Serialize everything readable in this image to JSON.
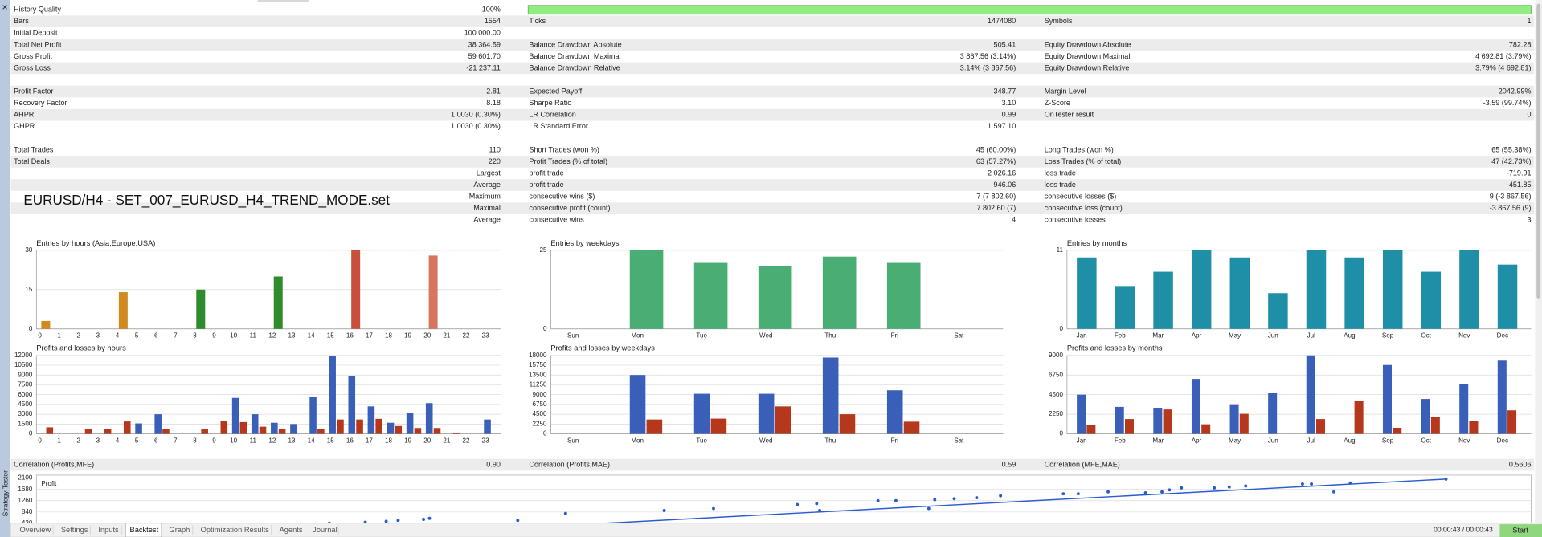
{
  "ui": {
    "close": "×",
    "side_label": "Strategy Tester"
  },
  "overlay_title": "EURUSD/H4 - SET_007_EURUSD_H4_TREND_MODE.set",
  "report": {
    "sections": [
      [
        {
          "left": {
            "label": "History Quality",
            "value": "100%"
          }
        },
        {
          "left": {
            "label": "Bars",
            "value": "1554"
          },
          "middle": {
            "label": "Ticks",
            "value": "1474080"
          },
          "right": {
            "label": "Symbols",
            "value": "1"
          }
        },
        {
          "left": {
            "label": "Initial Deposit",
            "value": "100 000.00"
          }
        },
        {
          "left": {
            "label": "Total Net Profit",
            "value": "38 364.59"
          },
          "middle": {
            "label": "Balance Drawdown Absolute",
            "value": "505.41"
          },
          "right": {
            "label": "Equity Drawdown Absolute",
            "value": "782.28"
          }
        },
        {
          "left": {
            "label": "Gross Profit",
            "value": "59 601.70"
          },
          "middle": {
            "label": "Balance Drawdown Maximal",
            "value": "3 867.56 (3.14%)"
          },
          "right": {
            "label": "Equity Drawdown Maximal",
            "value": "4 692.81 (3.79%)"
          }
        },
        {
          "left": {
            "label": "Gross Loss",
            "value": "-21 237.11"
          },
          "middle": {
            "label": "Balance Drawdown Relative",
            "value": "3.14% (3 867.56)"
          },
          "right": {
            "label": "Equity Drawdown Relative",
            "value": "3.79% (4 692.81)"
          }
        }
      ],
      [
        {
          "left": {
            "label": "Profit Factor",
            "value": "2.81"
          },
          "middle": {
            "label": "Expected Payoff",
            "value": "348.77"
          },
          "right": {
            "label": "Margin Level",
            "value": "2042.99%"
          }
        },
        {
          "left": {
            "label": "Recovery Factor",
            "value": "8.18"
          },
          "middle": {
            "label": "Sharpe Ratio",
            "value": "3.10"
          },
          "right": {
            "label": "Z-Score",
            "value": "-3.59 (99.74%)"
          }
        },
        {
          "left": {
            "label": "AHPR",
            "value": "1.0030 (0.30%)"
          },
          "middle": {
            "label": "LR Correlation",
            "value": "0.99"
          },
          "right": {
            "label": "OnTester result",
            "value": "0"
          }
        },
        {
          "left": {
            "label": "GHPR",
            "value": "1.0030 (0.30%)"
          },
          "middle": {
            "label": "LR Standard Error",
            "value": "1 597.10"
          }
        }
      ],
      [
        {
          "left": {
            "label": "Total Trades",
            "value": "110"
          },
          "middle": {
            "label": "Short Trades (won %)",
            "value": "45 (60.00%)"
          },
          "right": {
            "label": "Long Trades (won %)",
            "value": "65 (55.38%)"
          }
        },
        {
          "left": {
            "label": "Total Deals",
            "value": "220"
          },
          "middle": {
            "label": "Profit Trades (% of total)",
            "value": "63 (57.27%)"
          },
          "right": {
            "label": "Loss Trades (% of total)",
            "value": "47 (42.73%)"
          }
        },
        {
          "left": {
            "heading": "Largest"
          },
          "middle": {
            "label": "profit trade",
            "value": "2 026.16"
          },
          "right": {
            "label": "loss trade",
            "value": "-719.91"
          }
        },
        {
          "left": {
            "heading": "Average"
          },
          "middle": {
            "label": "profit trade",
            "value": "946.06"
          },
          "right": {
            "label": "loss trade",
            "value": "-451.85"
          }
        },
        {
          "left": {
            "heading": "Maximum"
          },
          "middle": {
            "label": "consecutive wins ($)",
            "value": "7 (7 802.60)"
          },
          "right": {
            "label": "consecutive losses ($)",
            "value": "9 (-3 867.56)"
          }
        },
        {
          "left": {
            "heading": "Maximal"
          },
          "middle": {
            "label": "consecutive profit (count)",
            "value": "7 802.60 (7)"
          },
          "right": {
            "label": "consecutive loss (count)",
            "value": "-3 867.56 (9)"
          }
        },
        {
          "left": {
            "heading": "Average"
          },
          "middle": {
            "label": "consecutive wins",
            "value": "4"
          },
          "right": {
            "label": "consecutive losses",
            "value": "3"
          }
        }
      ]
    ],
    "correlation": {
      "left": {
        "label": "Correlation (Profits,MFE)",
        "value": "0.90"
      },
      "middle": {
        "label": "Correlation (Profits,MAE)",
        "value": "0.59"
      },
      "right": {
        "label": "Correlation (MFE,MAE)",
        "value": "0.5606"
      }
    }
  },
  "chart_data": [
    {
      "type": "bar",
      "title": "Entries by hours (Asia,Europe,USA)",
      "categories": [
        "0",
        "1",
        "2",
        "3",
        "4",
        "5",
        "6",
        "7",
        "8",
        "9",
        "10",
        "11",
        "12",
        "13",
        "14",
        "15",
        "16",
        "17",
        "18",
        "19",
        "20",
        "21",
        "22",
        "23"
      ],
      "values": [
        3,
        0,
        0,
        0,
        14,
        0,
        0,
        0,
        15,
        0,
        0,
        0,
        20,
        0,
        0,
        0,
        30,
        0,
        0,
        0,
        28,
        0,
        0,
        0
      ],
      "colors": [
        "#d08a20",
        "#d08a20",
        "#d08a20",
        "#d08a20",
        "#d08a20",
        "#d08a20",
        "#d08a20",
        "#d08a20",
        "#2e8b2e",
        "#2e8b2e",
        "#2e8b2e",
        "#2e8b2e",
        "#2e8b2e",
        "#2e8b2e",
        "#2e8b2e",
        "#2e8b2e",
        "#c8503a",
        "#c8503a",
        "#c8503a",
        "#c8503a",
        "#d8755e",
        "#d8755e",
        "#d8755e",
        "#d8755e"
      ],
      "ylim": [
        0,
        30
      ],
      "yticks": [
        0,
        15,
        30
      ],
      "grid": true
    },
    {
      "type": "bar",
      "title": "Entries by weekdays",
      "categories": [
        "Sun",
        "Mon",
        "Tue",
        "Wed",
        "Thu",
        "Fri",
        "Sat"
      ],
      "values": [
        0,
        25,
        21,
        20,
        23,
        21,
        0
      ],
      "color": "#4aae74",
      "ylim": [
        0,
        25
      ],
      "yticks": [
        0,
        25
      ],
      "grid": true
    },
    {
      "type": "bar",
      "title": "Entries by months",
      "categories": [
        "Jan",
        "Feb",
        "Mar",
        "Apr",
        "May",
        "Jun",
        "Jul",
        "Aug",
        "Sep",
        "Oct",
        "Nov",
        "Dec"
      ],
      "values": [
        10,
        6,
        8,
        11,
        10,
        5,
        11,
        10,
        11,
        8,
        11,
        9
      ],
      "color": "#1f8fa8",
      "ylim": [
        0,
        11
      ],
      "yticks": [
        0,
        11
      ],
      "grid": true
    },
    {
      "type": "bar",
      "title": "Profits and losses by hours",
      "categories": [
        "0",
        "1",
        "2",
        "3",
        "4",
        "5",
        "6",
        "7",
        "8",
        "9",
        "10",
        "11",
        "12",
        "13",
        "14",
        "15",
        "16",
        "17",
        "18",
        "19",
        "20",
        "21",
        "22",
        "23"
      ],
      "series": [
        {
          "color": "#3a5fb8",
          "values": [
            0,
            0,
            0,
            0,
            0,
            1600,
            3000,
            0,
            0,
            0,
            5500,
            3000,
            1700,
            1500,
            5700,
            11900,
            8900,
            4200,
            1700,
            3200,
            4700,
            0,
            0,
            2200
          ]
        },
        {
          "color": "#b5381c",
          "values": [
            1000,
            0,
            700,
            700,
            1900,
            0,
            700,
            0,
            700,
            2000,
            1800,
            1100,
            800,
            0,
            700,
            2200,
            2200,
            2300,
            1200,
            900,
            900,
            200,
            0,
            0
          ]
        }
      ],
      "ylim": [
        0,
        12000
      ],
      "yticks": [
        0,
        1500,
        3000,
        4500,
        6000,
        7500,
        9000,
        10500,
        12000
      ],
      "grid": true
    },
    {
      "type": "bar",
      "title": "Profits and losses by weekdays",
      "categories": [
        "Sun",
        "Mon",
        "Tue",
        "Wed",
        "Thu",
        "Fri",
        "Sat"
      ],
      "series": [
        {
          "color": "#3a5fb8",
          "values": [
            0,
            13500,
            9200,
            9200,
            17500,
            10000,
            0
          ]
        },
        {
          "color": "#b5381c",
          "values": [
            0,
            3300,
            3500,
            6300,
            4500,
            2800,
            0
          ]
        }
      ],
      "ylim": [
        0,
        18000
      ],
      "yticks": [
        0,
        2250,
        4500,
        6750,
        9000,
        11250,
        13500,
        15750,
        18000
      ],
      "grid": true
    },
    {
      "type": "bar",
      "title": "Profits and losses by months",
      "categories": [
        "Jan",
        "Feb",
        "Mar",
        "Apr",
        "May",
        "Jun",
        "Jul",
        "Aug",
        "Sep",
        "Oct",
        "Nov",
        "Dec"
      ],
      "series": [
        {
          "color": "#3a5fb8",
          "values": [
            4500,
            3100,
            3000,
            6300,
            3400,
            4700,
            9000,
            0,
            7900,
            4000,
            5700,
            8400
          ]
        },
        {
          "color": "#b5381c",
          "values": [
            1000,
            1700,
            2800,
            1100,
            2300,
            0,
            1700,
            3800,
            700,
            1900,
            1500,
            2700
          ]
        }
      ],
      "ylim": [
        0,
        9000
      ],
      "yticks": [
        0,
        2250,
        4500,
        6750,
        9000
      ],
      "grid": true
    },
    {
      "type": "scatter",
      "title": "Profit",
      "color": "#2a5bd0",
      "x": [
        19.6,
        22.0,
        23.4,
        24.2,
        25.9,
        26.3,
        32.2,
        35.4,
        42.0,
        45.3,
        50.9,
        52.2,
        52.4,
        56.3,
        57.5,
        59.7,
        60.1,
        61.4,
        62.9,
        64.5,
        68.7,
        69.7,
        71.7,
        74.2,
        75.3,
        75.8,
        76.6,
        78.8,
        79.8,
        80.9,
        84.7,
        85.3,
        86.8,
        87.9,
        94.3
      ],
      "y": [
        421,
        457,
        494,
        530,
        566,
        603,
        530,
        786,
        895,
        968,
        1114,
        1151,
        895,
        1260,
        1260,
        968,
        1297,
        1333,
        1370,
        1443,
        1516,
        1516,
        1589,
        1552,
        1589,
        1662,
        1735,
        1735,
        1771,
        1808,
        1881,
        1881,
        1589,
        1917,
        2063
      ],
      "trend": {
        "x": [
          38,
          94.3
        ],
        "y": [
          421,
          2063
        ]
      },
      "xlim": [
        0,
        100
      ],
      "ylim": [
        420,
        2100
      ],
      "yticks": [
        420,
        840,
        1260,
        1680,
        2100
      ],
      "grid": true
    }
  ],
  "tabs": {
    "items": [
      "Overview",
      "Settings",
      "Inputs",
      "Backtest",
      "Graph",
      "Optimization Results",
      "Agents",
      "Journal"
    ],
    "active": 3
  },
  "status": {
    "time": "00:00:43 / 00:00:43",
    "button": "Start"
  }
}
